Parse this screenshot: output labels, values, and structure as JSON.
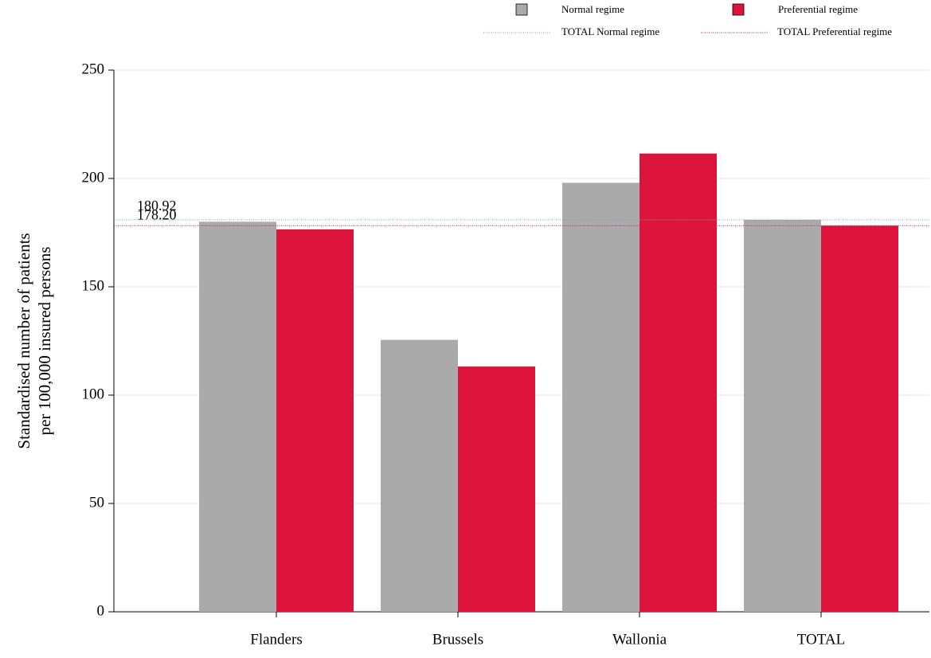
{
  "chart_data": {
    "type": "bar",
    "ylabel": [
      "Standardised number of patients",
      "per 100,000 insured persons"
    ],
    "categories": [
      "Flanders",
      "Brussels",
      "Wallonia",
      "TOTAL"
    ],
    "series": [
      {
        "name": "Normal regime",
        "color": "#aaaaaa",
        "values": [
          180,
          125.5,
          198,
          180.92
        ]
      },
      {
        "name": "Preferential regime",
        "color": "#dc143c",
        "values": [
          176.5,
          113.2,
          211.5,
          178.2
        ]
      }
    ],
    "reference_lines": [
      {
        "name": "TOTAL Normal regime",
        "color": "#7aa6b0",
        "value": 180.92,
        "value_label": "180.92"
      },
      {
        "name": "TOTAL Preferential regime",
        "color": "#c2185b",
        "value": 178.2,
        "value_label": "178.20"
      }
    ],
    "ylim": [
      0,
      250
    ],
    "yticks": [
      0,
      50,
      100,
      150,
      200,
      250
    ],
    "grid": true
  }
}
